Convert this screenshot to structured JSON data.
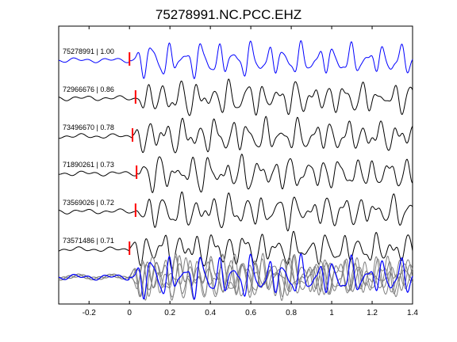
{
  "chart_data": {
    "type": "line",
    "title": "75278991.NC.PCC.EHZ",
    "xlim": [
      -0.35,
      1.4
    ],
    "xticks": [
      -0.2,
      0,
      0.2,
      0.4,
      0.6,
      0.8,
      1,
      1.2,
      1.4
    ],
    "xtick_labels": [
      "-0.2",
      "0",
      "0.2",
      "0.4",
      "0.6",
      "0.8",
      "1",
      "1.2",
      "1.4"
    ],
    "grid": false,
    "series": [
      {
        "label": "75278991 | 1.00",
        "pick": 0.0,
        "color": "#0000ff"
      },
      {
        "label": "72966676 | 0.86",
        "pick": 0.03,
        "color": "#000000"
      },
      {
        "label": "73496670 | 0.78",
        "pick": 0.015,
        "color": "#000000"
      },
      {
        "label": "71890261 | 0.73",
        "pick": 0.035,
        "color": "#000000"
      },
      {
        "label": "73569026 | 0.72",
        "pick": 0.03,
        "color": "#000000"
      },
      {
        "label": "73571486 | 0.71",
        "pick": 0.0,
        "color": "#000000"
      }
    ],
    "stack": {
      "primary_color": "#0000ff",
      "overlay_color": "#808080"
    },
    "pick_color": "#ff0000"
  }
}
